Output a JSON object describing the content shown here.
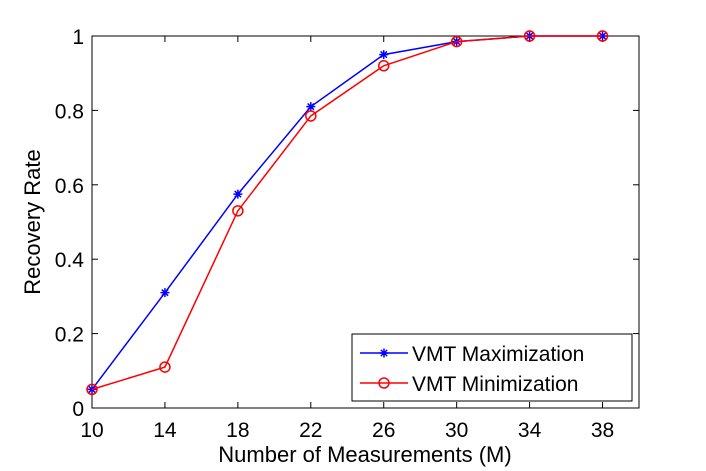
{
  "chart_data": {
    "type": "line",
    "x_label": "Number of Measurements (M)",
    "y_label": "Recovery Rate",
    "x": [
      10,
      14,
      18,
      22,
      26,
      30,
      34,
      38
    ],
    "series": [
      {
        "name": "VMT Maximization",
        "color": "#0000ff",
        "marker": "*",
        "values": [
          0.05,
          0.31,
          0.575,
          0.81,
          0.95,
          0.985,
          1,
          1
        ]
      },
      {
        "name": "VMT Minimization",
        "color": "#ff0000",
        "marker": "o",
        "values": [
          0.05,
          0.11,
          0.53,
          0.785,
          0.92,
          0.985,
          1,
          1
        ]
      }
    ],
    "xlim": [
      10,
      40
    ],
    "xticks": [
      10,
      14,
      18,
      22,
      26,
      30,
      34,
      38
    ],
    "ylim": [
      0,
      1
    ],
    "yticks": [
      0,
      0.2,
      0.4,
      0.6,
      0.8,
      1
    ],
    "grid": false,
    "legend": "lower right"
  }
}
